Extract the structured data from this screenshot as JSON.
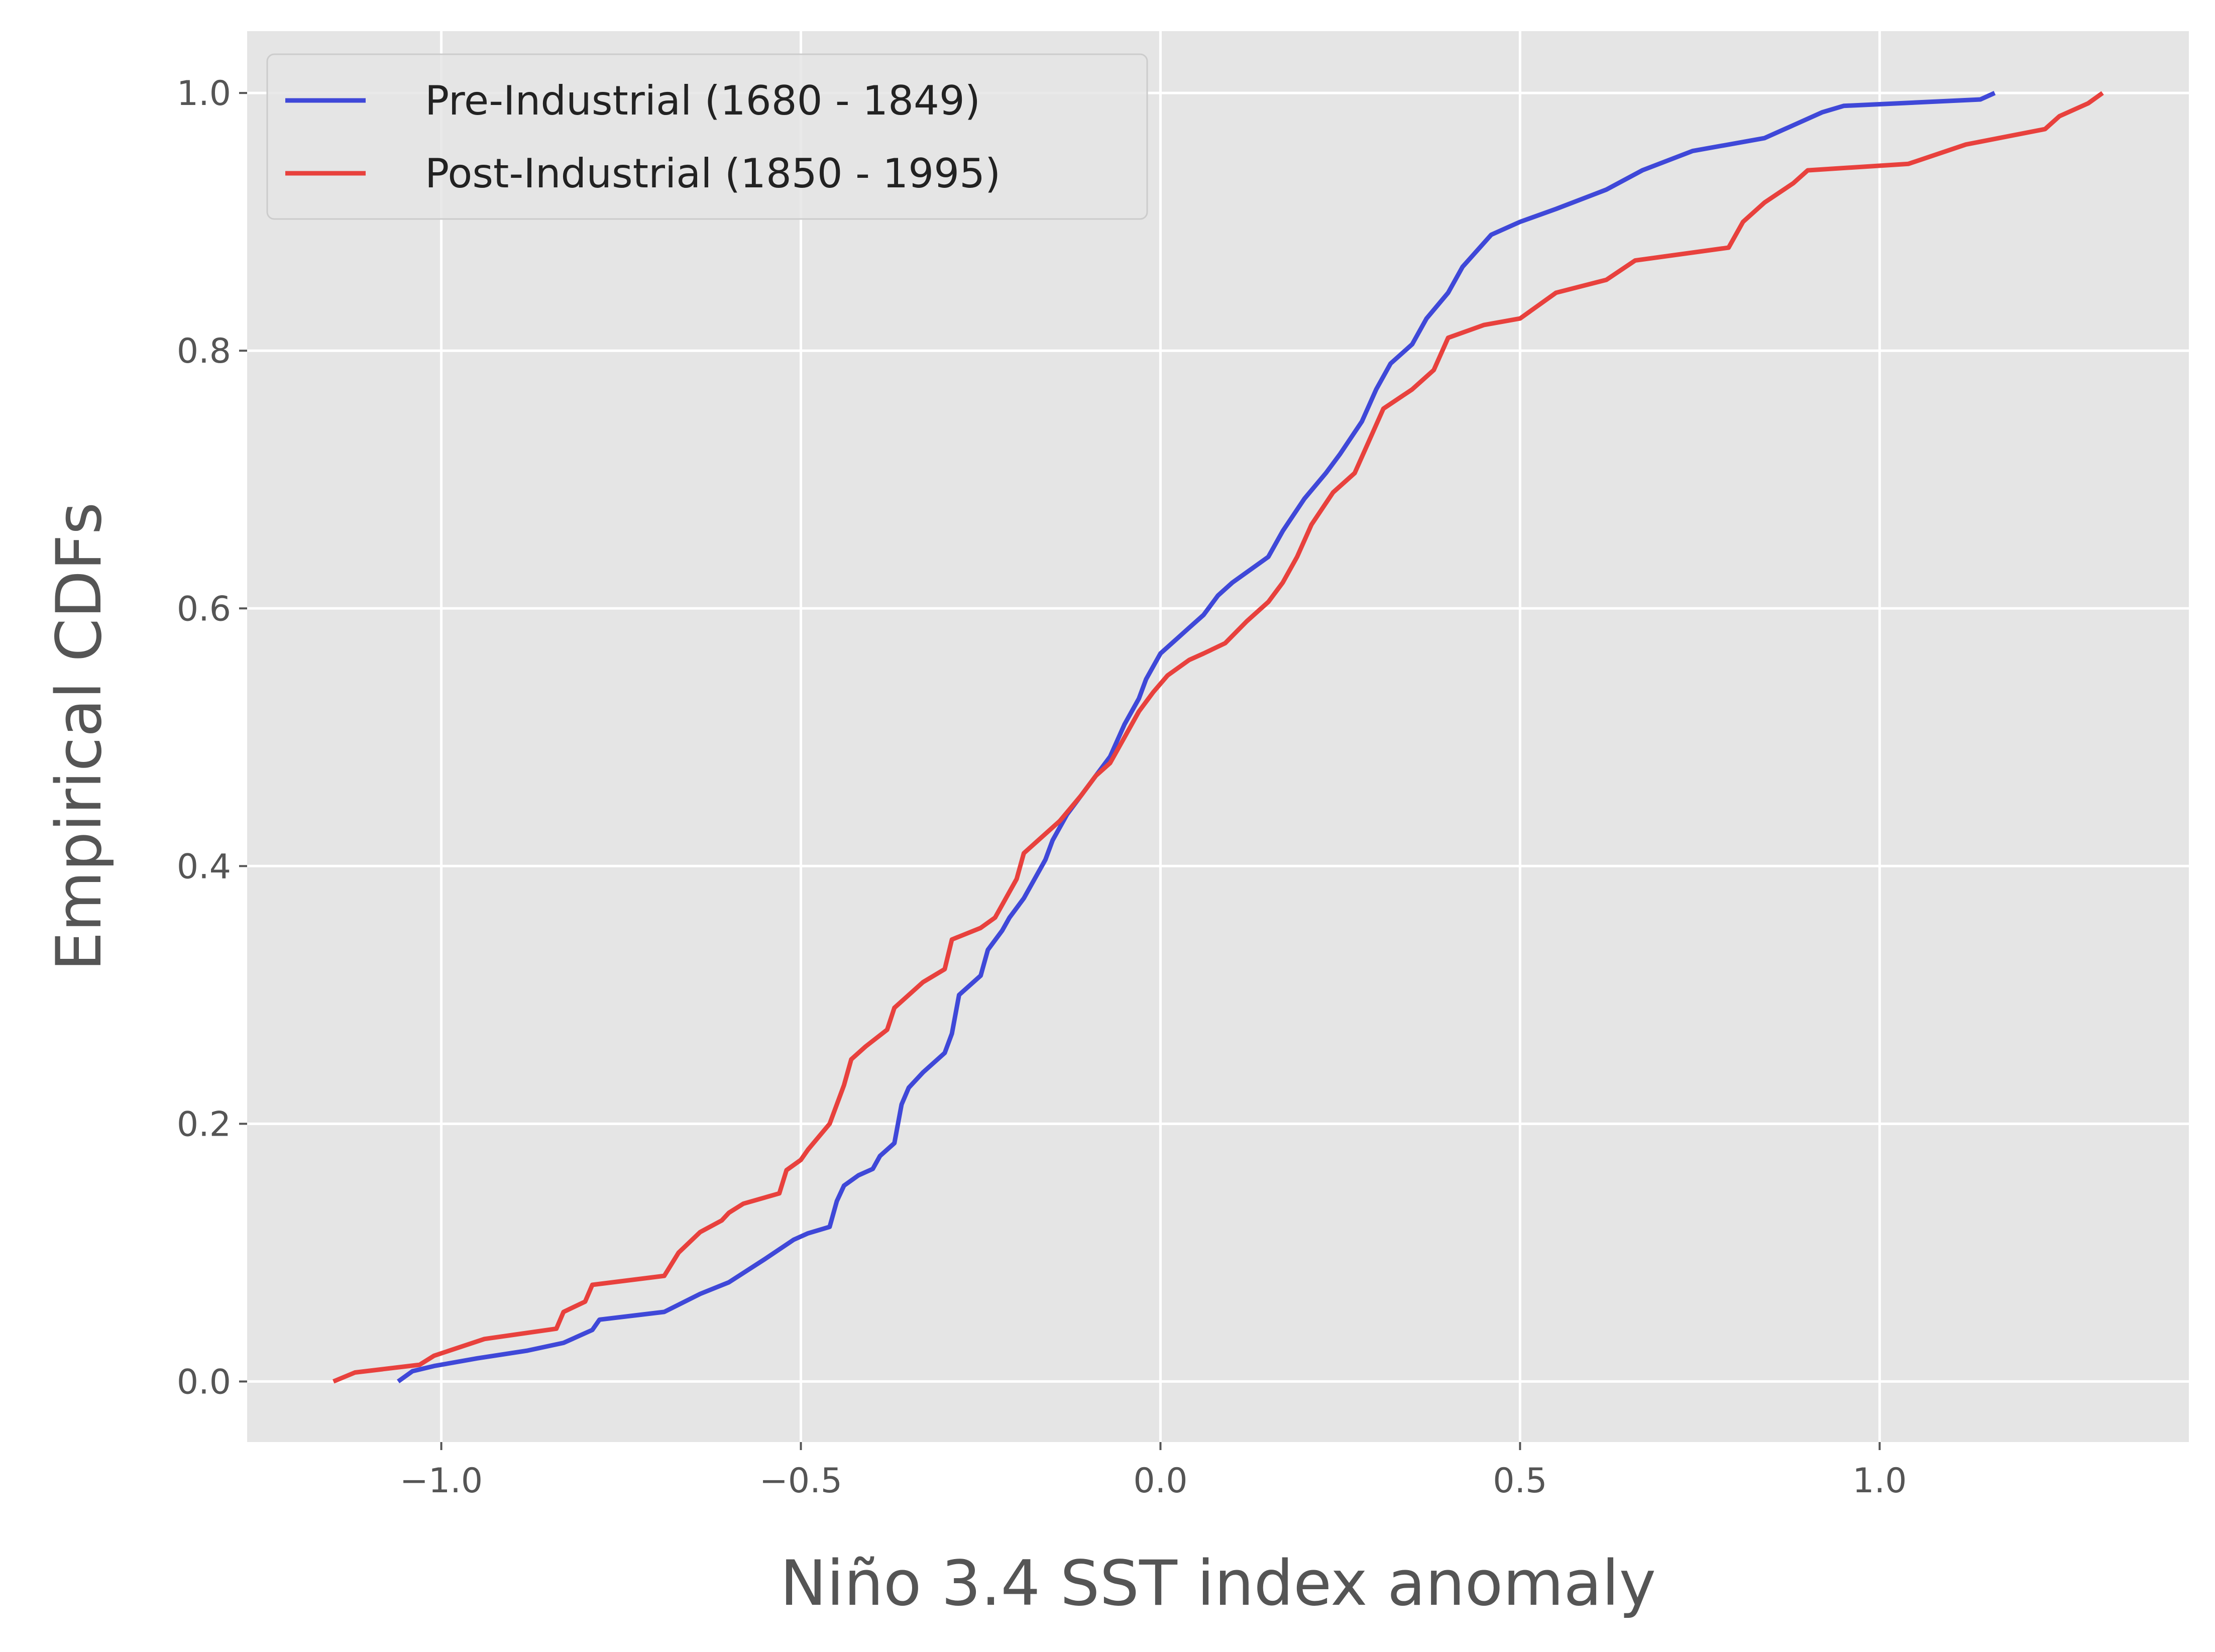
{
  "chart_data": {
    "type": "line",
    "title": "",
    "xlabel": "Niño 3.4 SST index anomaly",
    "ylabel": "Empirical CDFs",
    "xlim": [
      -1.27,
      1.43
    ],
    "ylim": [
      -0.047,
      1.048
    ],
    "xticks": [
      -1.0,
      -0.5,
      0.0,
      0.5,
      1.0
    ],
    "xtick_labels": [
      "−1.0",
      "−0.5",
      "0.0",
      "0.5",
      "1.0"
    ],
    "yticks": [
      0.0,
      0.2,
      0.4,
      0.6,
      0.8,
      1.0
    ],
    "ytick_labels": [
      "0.0",
      "0.2",
      "0.4",
      "0.6",
      "0.8",
      "1.0"
    ],
    "grid": true,
    "legend_position": "top-left",
    "series": [
      {
        "name": "Pre-Industrial (1680 - 1849)",
        "color": "#3f48d8",
        "x": [
          -1.06,
          -1.04,
          -1.01,
          -0.95,
          -0.88,
          -0.83,
          -0.79,
          -0.78,
          -0.69,
          -0.64,
          -0.6,
          -0.55,
          -0.51,
          -0.49,
          -0.46,
          -0.45,
          -0.44,
          -0.42,
          -0.4,
          -0.39,
          -0.37,
          -0.36,
          -0.35,
          -0.33,
          -0.3,
          -0.29,
          -0.28,
          -0.25,
          -0.24,
          -0.22,
          -0.21,
          -0.19,
          -0.18,
          -0.16,
          -0.15,
          -0.13,
          -0.11,
          -0.09,
          -0.07,
          -0.05,
          -0.03,
          -0.02,
          -0.01,
          0.0,
          0.02,
          0.04,
          0.06,
          0.08,
          0.1,
          0.15,
          0.17,
          0.2,
          0.23,
          0.25,
          0.28,
          0.3,
          0.32,
          0.35,
          0.37,
          0.4,
          0.42,
          0.46,
          0.5,
          0.55,
          0.62,
          0.67,
          0.74,
          0.84,
          0.88,
          0.92,
          0.95,
          1.14,
          1.16
        ],
        "y": [
          0.0,
          0.008,
          0.012,
          0.018,
          0.024,
          0.03,
          0.04,
          0.048,
          0.054,
          0.068,
          0.077,
          0.095,
          0.11,
          0.115,
          0.12,
          0.14,
          0.152,
          0.16,
          0.165,
          0.175,
          0.185,
          0.215,
          0.228,
          0.24,
          0.255,
          0.27,
          0.3,
          0.315,
          0.335,
          0.35,
          0.36,
          0.375,
          0.385,
          0.405,
          0.42,
          0.44,
          0.455,
          0.47,
          0.485,
          0.51,
          0.53,
          0.545,
          0.555,
          0.565,
          0.575,
          0.585,
          0.595,
          0.61,
          0.62,
          0.64,
          0.66,
          0.685,
          0.705,
          0.72,
          0.745,
          0.77,
          0.79,
          0.805,
          0.825,
          0.845,
          0.865,
          0.89,
          0.9,
          0.91,
          0.925,
          0.94,
          0.955,
          0.965,
          0.975,
          0.985,
          0.99,
          0.995,
          1.0
        ]
      },
      {
        "name": "Post-Industrial (1850 - 1995)",
        "color": "#e8413d",
        "x": [
          -1.15,
          -1.12,
          -1.03,
          -1.01,
          -0.94,
          -0.84,
          -0.83,
          -0.8,
          -0.79,
          -0.69,
          -0.67,
          -0.64,
          -0.61,
          -0.6,
          -0.58,
          -0.53,
          -0.52,
          -0.5,
          -0.49,
          -0.46,
          -0.44,
          -0.43,
          -0.41,
          -0.38,
          -0.37,
          -0.33,
          -0.3,
          -0.29,
          -0.25,
          -0.23,
          -0.2,
          -0.19,
          -0.17,
          -0.14,
          -0.11,
          -0.09,
          -0.07,
          -0.05,
          -0.03,
          -0.01,
          0.01,
          0.04,
          0.06,
          0.09,
          0.12,
          0.15,
          0.17,
          0.19,
          0.21,
          0.24,
          0.27,
          0.29,
          0.31,
          0.35,
          0.38,
          0.4,
          0.45,
          0.5,
          0.55,
          0.62,
          0.66,
          0.79,
          0.81,
          0.84,
          0.88,
          0.9,
          1.04,
          1.12,
          1.23,
          1.25,
          1.29,
          1.31
        ],
        "y": [
          0.0,
          0.007,
          0.013,
          0.02,
          0.033,
          0.041,
          0.054,
          0.062,
          0.075,
          0.082,
          0.1,
          0.116,
          0.125,
          0.131,
          0.138,
          0.146,
          0.164,
          0.172,
          0.18,
          0.2,
          0.23,
          0.25,
          0.26,
          0.273,
          0.29,
          0.31,
          0.32,
          0.343,
          0.352,
          0.36,
          0.39,
          0.41,
          0.42,
          0.435,
          0.455,
          0.47,
          0.48,
          0.5,
          0.52,
          0.535,
          0.548,
          0.56,
          0.565,
          0.573,
          0.59,
          0.605,
          0.62,
          0.64,
          0.665,
          0.69,
          0.705,
          0.73,
          0.755,
          0.77,
          0.785,
          0.81,
          0.82,
          0.825,
          0.845,
          0.855,
          0.87,
          0.88,
          0.9,
          0.915,
          0.93,
          0.94,
          0.945,
          0.96,
          0.972,
          0.982,
          0.992,
          1.0
        ]
      }
    ]
  }
}
